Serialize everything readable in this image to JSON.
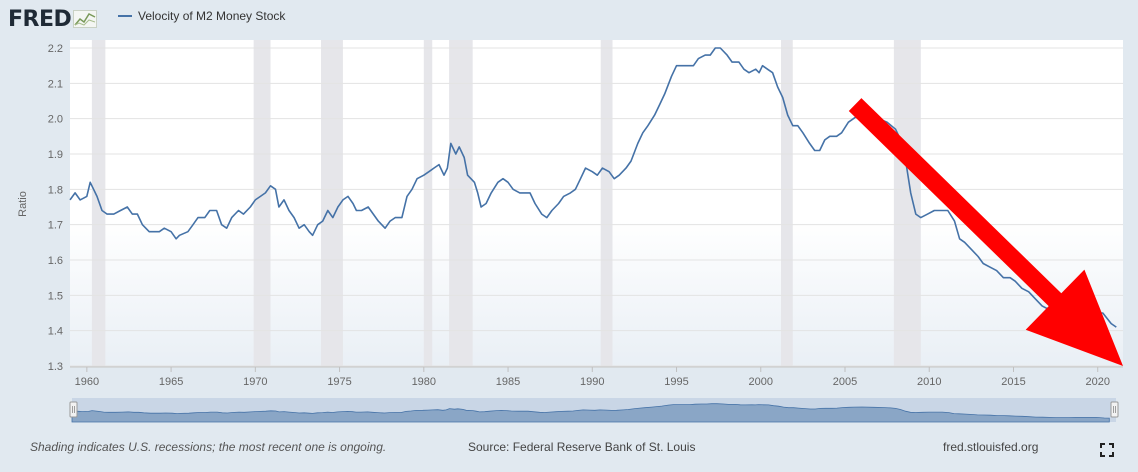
{
  "header": {
    "logo_text": "FRED",
    "logo_icon": "chart-line-icon",
    "legend_label": "Velocity of M2 Money Stock"
  },
  "footer": {
    "note": "Shading indicates U.S. recessions; the most recent one is ongoing.",
    "source": "Source: Federal Reserve Bank of St. Louis",
    "link": "fred.stlouisfed.org",
    "expand_icon": "expand-icon"
  },
  "colors": {
    "line": "#4572a7",
    "recession": "#e6e6ea",
    "arrow": "#ff0000",
    "background": "#e1e9f0",
    "plot": "#ffffff"
  },
  "chart_data": {
    "type": "line",
    "ylabel": "Ratio",
    "xlabel": "",
    "xlim": [
      1959,
      2021.5
    ],
    "ylim": [
      1.3,
      2.2
    ],
    "x_ticks": [
      "1960",
      "1965",
      "1970",
      "1975",
      "1980",
      "1985",
      "1990",
      "1995",
      "2000",
      "2005",
      "2010",
      "2015",
      "2020"
    ],
    "y_ticks": [
      "1.3",
      "1.4",
      "1.5",
      "1.6",
      "1.7",
      "1.8",
      "1.9",
      "2.0",
      "2.1",
      "2.2"
    ],
    "grid": true,
    "recessions": [
      [
        1960.3,
        1961.1
      ],
      [
        1969.9,
        1970.9
      ],
      [
        1973.9,
        1975.2
      ],
      [
        1980.0,
        1980.5
      ],
      [
        1981.5,
        1982.9
      ],
      [
        1990.5,
        1991.2
      ],
      [
        2001.2,
        2001.9
      ],
      [
        2007.9,
        2009.5
      ]
    ],
    "series": [
      {
        "name": "Velocity of M2 Money Stock",
        "points": [
          [
            1959.0,
            1.77
          ],
          [
            1959.3,
            1.79
          ],
          [
            1959.6,
            1.77
          ],
          [
            1960.0,
            1.78
          ],
          [
            1960.2,
            1.82
          ],
          [
            1960.6,
            1.78
          ],
          [
            1960.9,
            1.74
          ],
          [
            1961.2,
            1.73
          ],
          [
            1961.6,
            1.73
          ],
          [
            1962.0,
            1.74
          ],
          [
            1962.4,
            1.75
          ],
          [
            1962.7,
            1.73
          ],
          [
            1963.0,
            1.73
          ],
          [
            1963.3,
            1.7
          ],
          [
            1963.7,
            1.68
          ],
          [
            1964.0,
            1.68
          ],
          [
            1964.3,
            1.68
          ],
          [
            1964.6,
            1.69
          ],
          [
            1965.0,
            1.68
          ],
          [
            1965.3,
            1.66
          ],
          [
            1965.5,
            1.67
          ],
          [
            1966.0,
            1.68
          ],
          [
            1966.3,
            1.7
          ],
          [
            1966.6,
            1.72
          ],
          [
            1967.0,
            1.72
          ],
          [
            1967.3,
            1.74
          ],
          [
            1967.7,
            1.74
          ],
          [
            1968.0,
            1.7
          ],
          [
            1968.3,
            1.69
          ],
          [
            1968.6,
            1.72
          ],
          [
            1969.0,
            1.74
          ],
          [
            1969.3,
            1.73
          ],
          [
            1969.7,
            1.75
          ],
          [
            1970.0,
            1.77
          ],
          [
            1970.3,
            1.78
          ],
          [
            1970.6,
            1.79
          ],
          [
            1970.9,
            1.81
          ],
          [
            1971.2,
            1.8
          ],
          [
            1971.4,
            1.75
          ],
          [
            1971.7,
            1.77
          ],
          [
            1972.0,
            1.74
          ],
          [
            1972.3,
            1.72
          ],
          [
            1972.6,
            1.69
          ],
          [
            1972.9,
            1.7
          ],
          [
            1973.2,
            1.68
          ],
          [
            1973.4,
            1.67
          ],
          [
            1973.7,
            1.7
          ],
          [
            1974.0,
            1.71
          ],
          [
            1974.3,
            1.74
          ],
          [
            1974.6,
            1.72
          ],
          [
            1974.9,
            1.75
          ],
          [
            1975.2,
            1.77
          ],
          [
            1975.5,
            1.78
          ],
          [
            1975.8,
            1.76
          ],
          [
            1976.0,
            1.74
          ],
          [
            1976.3,
            1.74
          ],
          [
            1976.7,
            1.75
          ],
          [
            1977.0,
            1.73
          ],
          [
            1977.3,
            1.71
          ],
          [
            1977.7,
            1.69
          ],
          [
            1978.0,
            1.71
          ],
          [
            1978.3,
            1.72
          ],
          [
            1978.7,
            1.72
          ],
          [
            1979.0,
            1.78
          ],
          [
            1979.3,
            1.8
          ],
          [
            1979.6,
            1.83
          ],
          [
            1980.0,
            1.84
          ],
          [
            1980.3,
            1.85
          ],
          [
            1980.6,
            1.86
          ],
          [
            1980.9,
            1.87
          ],
          [
            1981.2,
            1.84
          ],
          [
            1981.4,
            1.86
          ],
          [
            1981.6,
            1.93
          ],
          [
            1981.9,
            1.9
          ],
          [
            1982.1,
            1.92
          ],
          [
            1982.4,
            1.89
          ],
          [
            1982.6,
            1.84
          ],
          [
            1983.0,
            1.82
          ],
          [
            1983.2,
            1.79
          ],
          [
            1983.4,
            1.75
          ],
          [
            1983.7,
            1.76
          ],
          [
            1984.0,
            1.79
          ],
          [
            1984.4,
            1.82
          ],
          [
            1984.7,
            1.83
          ],
          [
            1985.0,
            1.82
          ],
          [
            1985.3,
            1.8
          ],
          [
            1985.7,
            1.79
          ],
          [
            1986.0,
            1.79
          ],
          [
            1986.3,
            1.79
          ],
          [
            1986.6,
            1.76
          ],
          [
            1987.0,
            1.73
          ],
          [
            1987.3,
            1.72
          ],
          [
            1987.6,
            1.74
          ],
          [
            1988.0,
            1.76
          ],
          [
            1988.3,
            1.78
          ],
          [
            1988.7,
            1.79
          ],
          [
            1989.0,
            1.8
          ],
          [
            1989.3,
            1.83
          ],
          [
            1989.6,
            1.86
          ],
          [
            1990.0,
            1.85
          ],
          [
            1990.3,
            1.84
          ],
          [
            1990.6,
            1.86
          ],
          [
            1991.0,
            1.85
          ],
          [
            1991.3,
            1.83
          ],
          [
            1991.6,
            1.84
          ],
          [
            1992.0,
            1.86
          ],
          [
            1992.3,
            1.88
          ],
          [
            1992.7,
            1.93
          ],
          [
            1993.0,
            1.96
          ],
          [
            1993.3,
            1.98
          ],
          [
            1993.7,
            2.01
          ],
          [
            1994.0,
            2.04
          ],
          [
            1994.3,
            2.07
          ],
          [
            1994.7,
            2.12
          ],
          [
            1995.0,
            2.15
          ],
          [
            1995.3,
            2.15
          ],
          [
            1995.7,
            2.15
          ],
          [
            1996.0,
            2.15
          ],
          [
            1996.3,
            2.17
          ],
          [
            1996.7,
            2.18
          ],
          [
            1997.0,
            2.18
          ],
          [
            1997.3,
            2.2
          ],
          [
            1997.6,
            2.2
          ],
          [
            1998.0,
            2.18
          ],
          [
            1998.3,
            2.16
          ],
          [
            1998.7,
            2.16
          ],
          [
            1999.0,
            2.14
          ],
          [
            1999.3,
            2.13
          ],
          [
            1999.7,
            2.14
          ],
          [
            1999.9,
            2.13
          ],
          [
            2000.1,
            2.15
          ],
          [
            2000.4,
            2.14
          ],
          [
            2000.7,
            2.13
          ],
          [
            2001.0,
            2.09
          ],
          [
            2001.3,
            2.06
          ],
          [
            2001.6,
            2.01
          ],
          [
            2001.9,
            1.98
          ],
          [
            2002.2,
            1.98
          ],
          [
            2002.5,
            1.96
          ],
          [
            2002.9,
            1.93
          ],
          [
            2003.2,
            1.91
          ],
          [
            2003.5,
            1.91
          ],
          [
            2003.8,
            1.94
          ],
          [
            2004.1,
            1.95
          ],
          [
            2004.5,
            1.95
          ],
          [
            2004.8,
            1.96
          ],
          [
            2005.2,
            1.99
          ],
          [
            2005.5,
            2.0
          ],
          [
            2005.8,
            2.01
          ],
          [
            2006.3,
            2.02
          ],
          [
            2007.0,
            2.0
          ],
          [
            2007.5,
            1.99
          ],
          [
            2008.0,
            1.97
          ],
          [
            2008.3,
            1.94
          ],
          [
            2008.6,
            1.88
          ],
          [
            2008.9,
            1.79
          ],
          [
            2009.2,
            1.73
          ],
          [
            2009.5,
            1.72
          ],
          [
            2009.9,
            1.73
          ],
          [
            2010.3,
            1.74
          ],
          [
            2010.7,
            1.74
          ],
          [
            2011.1,
            1.74
          ],
          [
            2011.5,
            1.71
          ],
          [
            2011.8,
            1.66
          ],
          [
            2012.1,
            1.65
          ],
          [
            2012.5,
            1.63
          ],
          [
            2012.9,
            1.61
          ],
          [
            2013.2,
            1.59
          ],
          [
            2013.6,
            1.58
          ],
          [
            2014.0,
            1.57
          ],
          [
            2014.4,
            1.55
          ],
          [
            2014.8,
            1.55
          ],
          [
            2015.1,
            1.54
          ],
          [
            2015.5,
            1.52
          ],
          [
            2015.9,
            1.51
          ],
          [
            2016.3,
            1.49
          ],
          [
            2016.7,
            1.47
          ],
          [
            2017.1,
            1.46
          ],
          [
            2017.5,
            1.45
          ],
          [
            2017.9,
            1.44
          ],
          [
            2018.3,
            1.44
          ],
          [
            2018.7,
            1.44
          ],
          [
            2019.1,
            1.45
          ],
          [
            2019.5,
            1.45
          ],
          [
            2019.9,
            1.45
          ],
          [
            2020.3,
            1.45
          ],
          [
            2020.8,
            1.42
          ],
          [
            2021.1,
            1.41
          ]
        ]
      }
    ],
    "annotations": [
      {
        "type": "arrow",
        "color": "#ff0000",
        "from": [
          2005.6,
          2.04
        ],
        "to": [
          2021.5,
          1.3
        ]
      }
    ]
  }
}
